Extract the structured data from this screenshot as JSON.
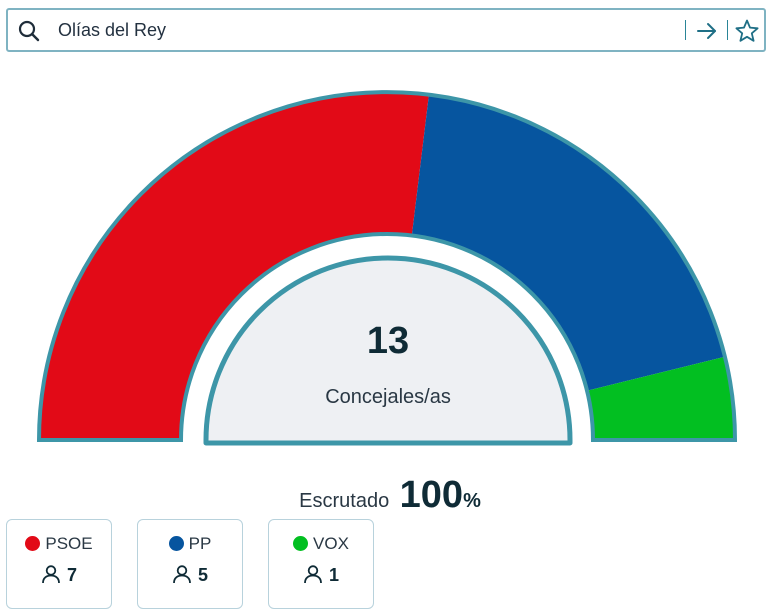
{
  "search": {
    "value": "Olías del Rey",
    "icons": {
      "search": "search-icon",
      "go": "arrow-right-icon",
      "favorite": "star-icon"
    }
  },
  "results": {
    "total_seats": "13",
    "total_label": "Concejales/as",
    "counted_label": "Escrutado",
    "counted_value": "100",
    "counted_unit": "%",
    "colors": {
      "ring": "#3d96a8",
      "inner": "#eef0f3"
    }
  },
  "parties": [
    {
      "name": "PSOE",
      "seats": 7,
      "color": "#e20a17"
    },
    {
      "name": "PP",
      "seats": 5,
      "color": "#06559f"
    },
    {
      "name": "VOX",
      "seats": 1,
      "color": "#02bf21"
    }
  ]
}
